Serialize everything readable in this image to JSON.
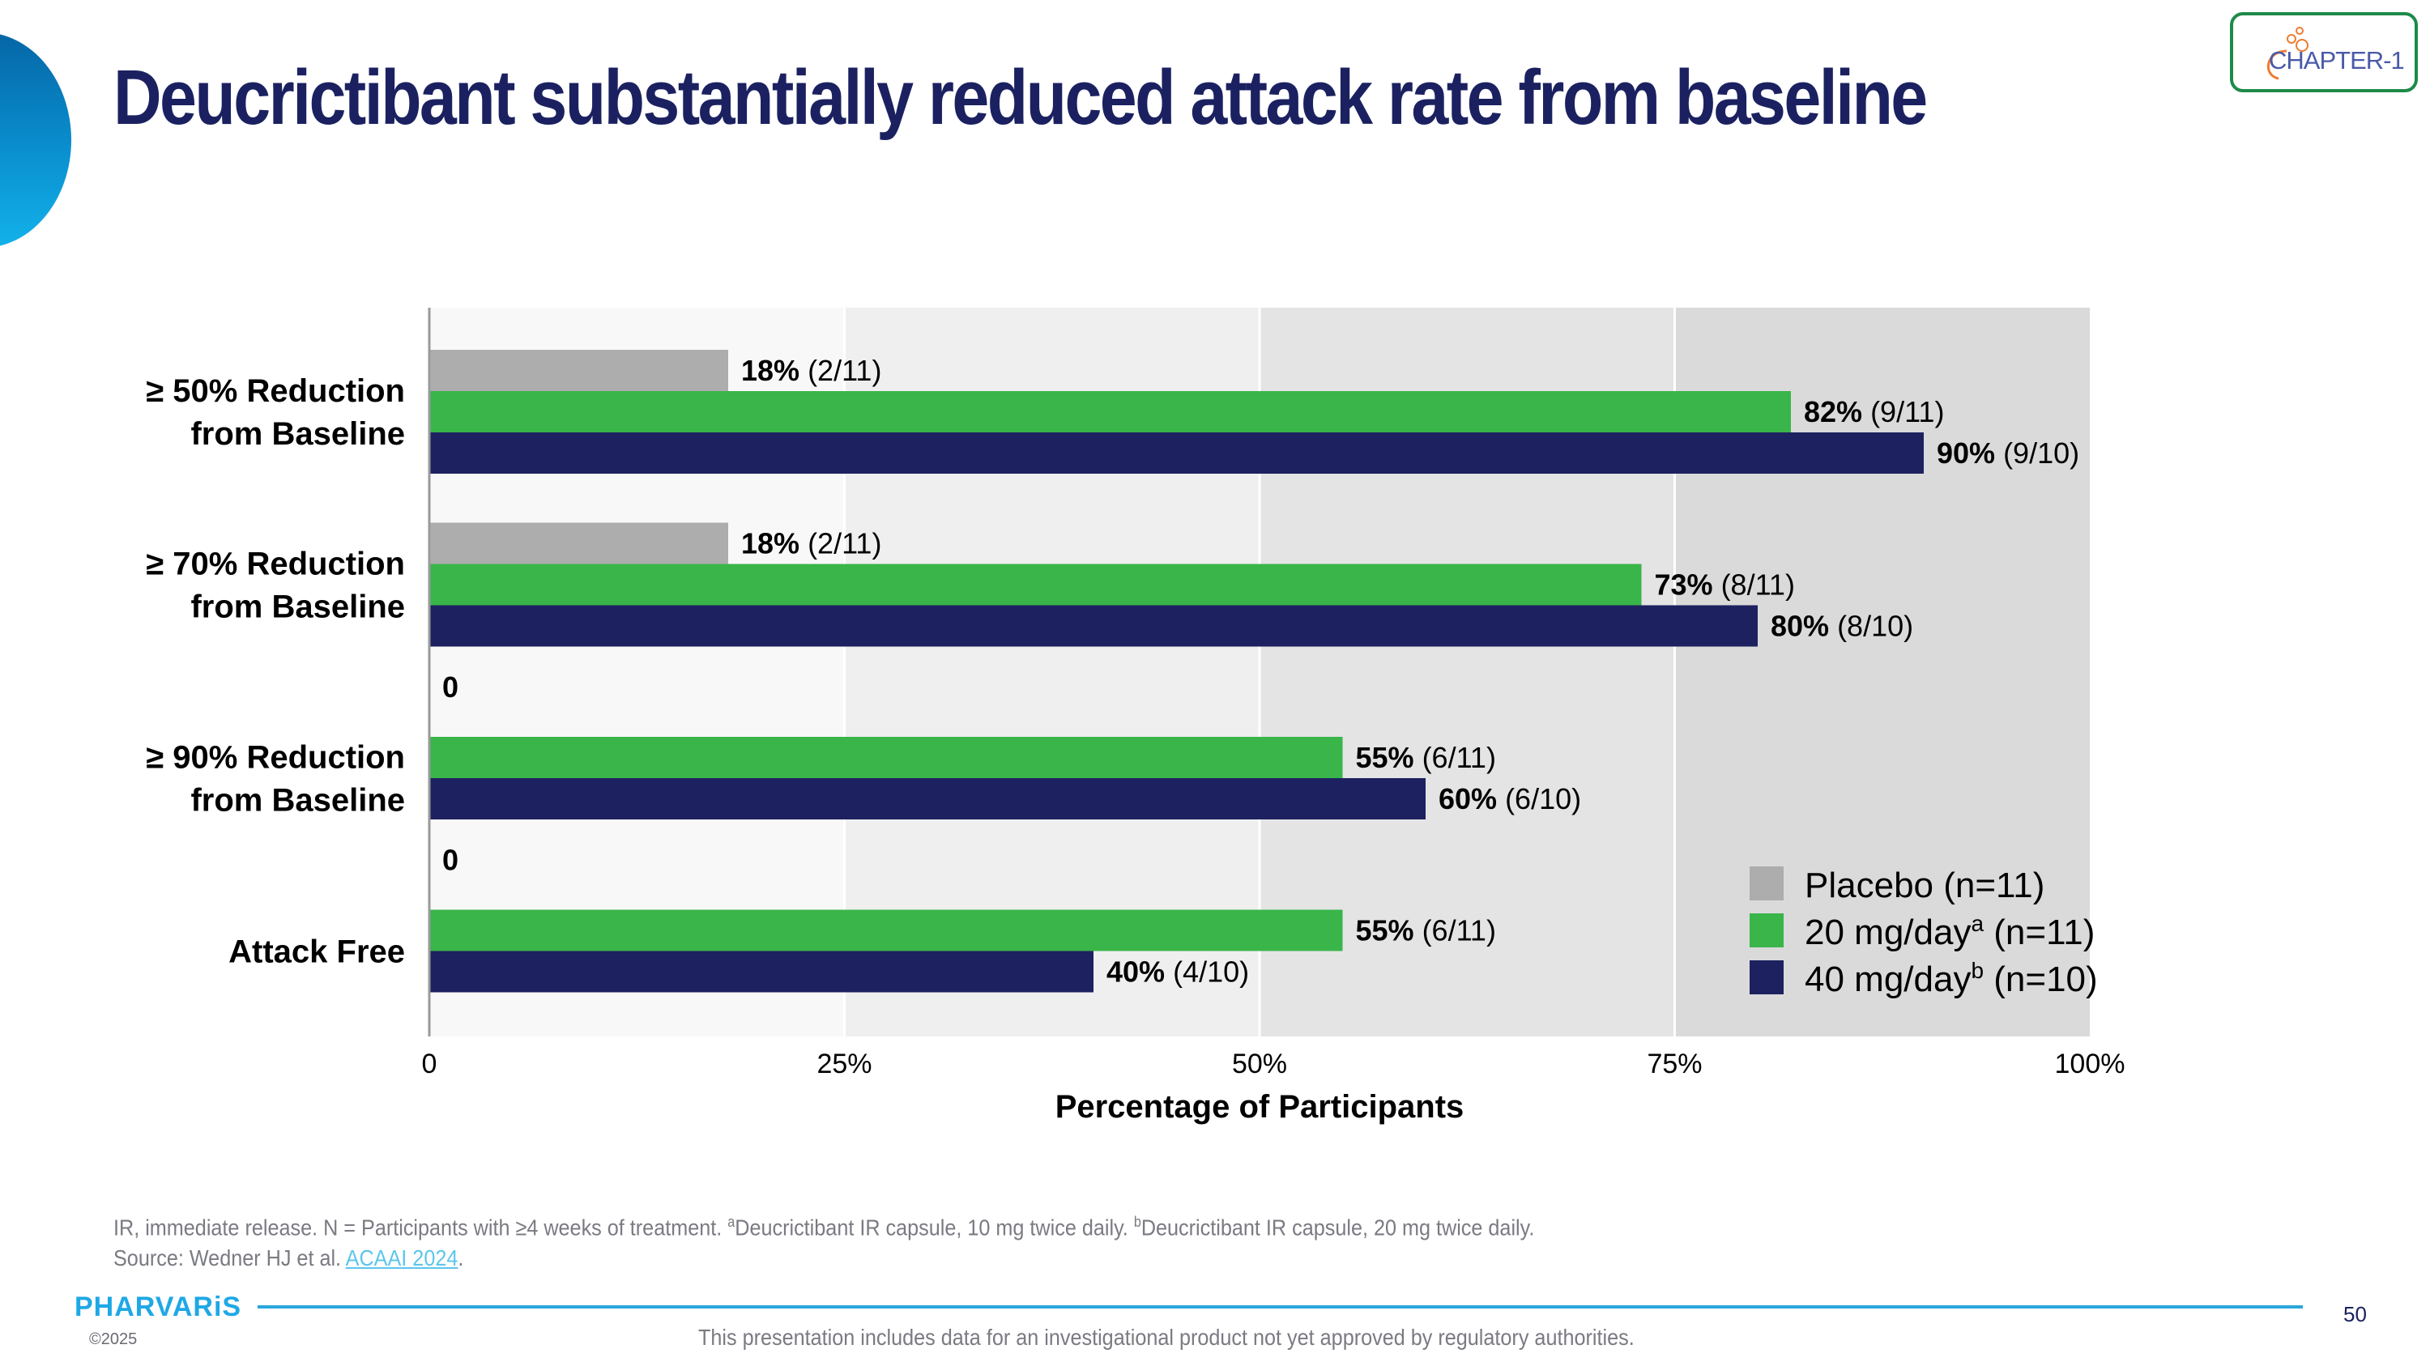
{
  "slide": {
    "title": "Deucrictibant substantially reduced attack rate from baseline",
    "logo_text": "CHAPTER-1",
    "brand": "PHARVARiS",
    "copyright": "©2025",
    "page_number": "50",
    "disclaimer": "This presentation includes data for an investigational product not yet approved by regulatory authorities.",
    "footnote_line1_a": "IR, immediate release. N = Participants with ≥4 weeks of treatment. ",
    "footnote_sup_a": "a",
    "footnote_line1_b": "Deucrictibant IR capsule, 10 mg twice daily. ",
    "footnote_sup_b": "b",
    "footnote_line1_c": "Deucrictibant IR capsule, 20 mg twice daily.",
    "source_prefix": "Source: Wedner HJ et al. ",
    "source_link": "ACAAI 2024",
    "source_suffix": ".",
    "colors": {
      "title": "#1b2160",
      "placebo": "#adadad",
      "dose20": "#39b54a",
      "dose40": "#1d2160",
      "accent": "#1ea8e6"
    }
  },
  "chart_data": {
    "type": "bar",
    "orientation": "horizontal",
    "title": "",
    "xlabel": "Percentage of Participants",
    "ylabel": "",
    "xlim": [
      0,
      100
    ],
    "x_ticks": [
      "0",
      "25%",
      "50%",
      "75%",
      "100%"
    ],
    "x_tick_values": [
      0,
      25,
      50,
      75,
      100
    ],
    "grid": false,
    "legend_position": "bottom-right",
    "categories": [
      [
        "≥ 50% Reduction",
        "from Baseline"
      ],
      [
        "≥ 70% Reduction",
        "from Baseline"
      ],
      [
        "≥ 90% Reduction",
        "from Baseline"
      ],
      [
        "Attack Free"
      ]
    ],
    "series": [
      {
        "name": "Placebo (n=11)",
        "legend_main": "Placebo (n=11)",
        "legend_sup": "",
        "legend_tail": "",
        "color": "#adadad",
        "values": [
          18,
          18,
          0,
          0
        ],
        "labels_bold": [
          "18%",
          "18%",
          "0",
          "0"
        ],
        "labels_frac": [
          "(2/11)",
          "(2/11)",
          "",
          ""
        ]
      },
      {
        "name": "20 mg/day (n=11)",
        "legend_main": "20 mg/day",
        "legend_sup": "a",
        "legend_tail": " (n=11)",
        "color": "#39b54a",
        "values": [
          82,
          73,
          55,
          55
        ],
        "labels_bold": [
          "82%",
          "73%",
          "55%",
          "55%"
        ],
        "labels_frac": [
          "(9/11)",
          "(8/11)",
          "(6/11)",
          "(6/11)"
        ]
      },
      {
        "name": "40 mg/day (n=10)",
        "legend_main": "40 mg/day",
        "legend_sup": "b",
        "legend_tail": " (n=10)",
        "color": "#1d2160",
        "values": [
          90,
          80,
          60,
          40
        ],
        "labels_bold": [
          "90%",
          "80%",
          "60%",
          "40%"
        ],
        "labels_frac": [
          "(9/10)",
          "(8/10)",
          "(6/10)",
          "(4/10)"
        ]
      }
    ],
    "background_bands": [
      "#f8f8f8",
      "#efefef",
      "#e4e4e4",
      "#dadada"
    ]
  }
}
